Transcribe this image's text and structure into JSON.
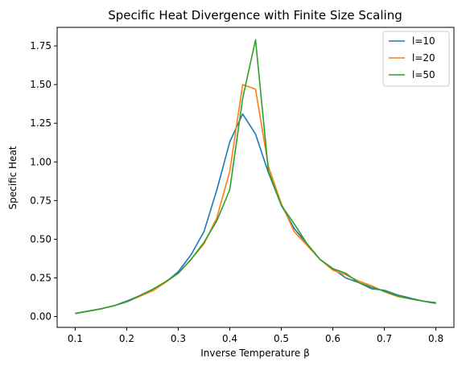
{
  "chart_data": {
    "type": "line",
    "title": "Specific Heat Divergence with Finite Size Scaling",
    "xlabel": "Inverse Temperature β",
    "ylabel": "Specific Heat",
    "xlim": [
      0.065,
      0.835
    ],
    "ylim": [
      -0.07,
      1.87
    ],
    "xticks": [
      "0.1",
      "0.2",
      "0.3",
      "0.4",
      "0.5",
      "0.6",
      "0.7",
      "0.8"
    ],
    "yticks": [
      "0.00",
      "0.25",
      "0.50",
      "0.75",
      "1.00",
      "1.25",
      "1.50",
      "1.75"
    ],
    "grid": false,
    "legend_position": "top-right",
    "x": [
      0.1,
      0.125,
      0.15,
      0.175,
      0.2,
      0.225,
      0.25,
      0.275,
      0.3,
      0.325,
      0.35,
      0.375,
      0.4,
      0.425,
      0.45,
      0.475,
      0.5,
      0.525,
      0.55,
      0.575,
      0.6,
      0.625,
      0.65,
      0.675,
      0.7,
      0.725,
      0.75,
      0.775,
      0.8
    ],
    "series": [
      {
        "name": "l=10",
        "color": "#1f77b4",
        "values": [
          0.02,
          0.035,
          0.05,
          0.07,
          0.1,
          0.135,
          0.175,
          0.22,
          0.29,
          0.4,
          0.55,
          0.82,
          1.13,
          1.31,
          1.18,
          0.93,
          0.72,
          0.57,
          0.47,
          0.37,
          0.31,
          0.25,
          0.22,
          0.18,
          0.17,
          0.14,
          0.12,
          0.1,
          0.09
        ]
      },
      {
        "name": "l=20",
        "color": "#ff7f0e",
        "values": [
          0.02,
          0.035,
          0.05,
          0.07,
          0.095,
          0.13,
          0.165,
          0.22,
          0.28,
          0.37,
          0.47,
          0.64,
          0.94,
          1.5,
          1.47,
          0.97,
          0.73,
          0.55,
          0.46,
          0.37,
          0.3,
          0.27,
          0.23,
          0.2,
          0.16,
          0.13,
          0.115,
          0.1,
          0.085
        ]
      },
      {
        "name": "l=50",
        "color": "#2ca02c",
        "values": [
          0.02,
          0.035,
          0.05,
          0.07,
          0.095,
          0.135,
          0.175,
          0.225,
          0.28,
          0.37,
          0.48,
          0.62,
          0.82,
          1.41,
          1.79,
          0.94,
          0.72,
          0.6,
          0.47,
          0.37,
          0.31,
          0.28,
          0.22,
          0.19,
          0.165,
          0.135,
          0.115,
          0.1,
          0.085
        ]
      }
    ]
  }
}
